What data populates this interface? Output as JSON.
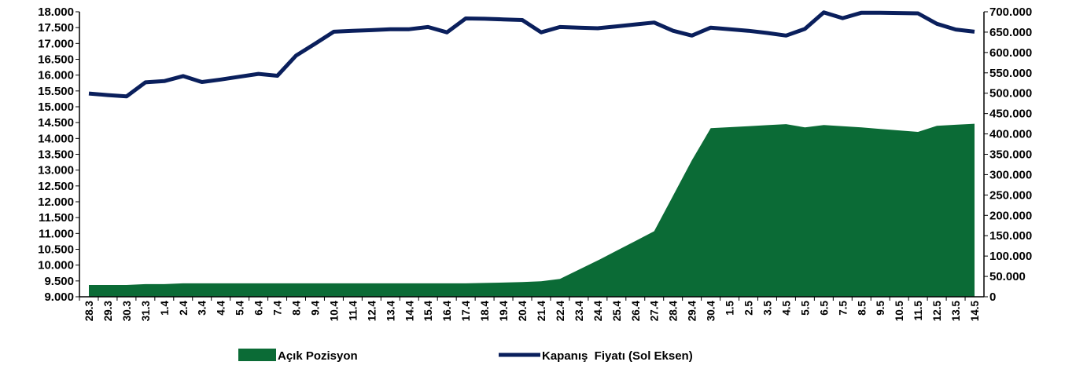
{
  "chart_data": {
    "type": "line",
    "categories": [
      "28.3",
      "29.3",
      "30.3",
      "31.3",
      "1.4",
      "2.4",
      "3.4",
      "4.4",
      "5.4",
      "6.4",
      "7.4",
      "8.4",
      "9.4",
      "10.4",
      "11.4",
      "12.4",
      "13.4",
      "14.4",
      "15.4",
      "16.4",
      "17.4",
      "18.4",
      "19.4",
      "20.4",
      "21.4",
      "22.4",
      "23.4",
      "24.4",
      "25.4",
      "26.4",
      "27.4",
      "28.4",
      "29.4",
      "30.4",
      "1.5",
      "2.5",
      "3.5",
      "4.5",
      "5.5",
      "6.5",
      "7.5",
      "8.5",
      "9.5",
      "10.5",
      "11.5",
      "12.5",
      "13.5",
      "14.5"
    ],
    "y_left": {
      "ylim": [
        9000,
        18000
      ],
      "ticks": [
        "9.000",
        "9.500",
        "10.000",
        "10.500",
        "11.000",
        "11.500",
        "12.000",
        "12.500",
        "13.000",
        "13.500",
        "14.000",
        "14.500",
        "15.000",
        "15.500",
        "16.000",
        "16.500",
        "17.000",
        "17.500",
        "18.000"
      ]
    },
    "y_right": {
      "ylim": [
        0,
        700000
      ],
      "ticks": [
        "0",
        "50.000",
        "100.000",
        "150.000",
        "200.000",
        "250.000",
        "300.000",
        "350.000",
        "400.000",
        "450.000",
        "500.000",
        "550.000",
        "600.000",
        "650.000",
        "700.000"
      ]
    },
    "grid": false,
    "legend_position": "bottom",
    "series": [
      {
        "name": "Açık Pozisyon",
        "type": "area",
        "axis": "right",
        "color": "#0b6b36",
        "values": [
          29000,
          29000,
          29000,
          31000,
          31000,
          33000,
          33000,
          33000,
          33000,
          33000,
          33000,
          33000,
          33000,
          33000,
          33000,
          33000,
          33000,
          33000,
          33000,
          33000,
          33000,
          34000,
          35000,
          36000,
          38000,
          44000,
          null,
          89000,
          null,
          null,
          161000,
          null,
          335000,
          414000,
          null,
          null,
          null,
          424000,
          416000,
          422000,
          null,
          416000,
          null,
          null,
          405000,
          420000,
          null,
          425000
        ]
      },
      {
        "name": "Kapanış  Fiyatı (Sol Eksen)",
        "type": "line",
        "axis": "left",
        "color": "#0a1f5c",
        "values": [
          15420,
          15370,
          15330,
          15770,
          15810,
          15970,
          15780,
          15860,
          15950,
          16040,
          15980,
          16620,
          16990,
          17370,
          17400,
          17420,
          17450,
          17450,
          17520,
          17350,
          17790,
          17780,
          17760,
          17740,
          17350,
          17520,
          17500,
          17480,
          17540,
          17600,
          17660,
          17400,
          17250,
          17500,
          17450,
          17400,
          17330,
          17250,
          17460,
          17980,
          17800,
          17970,
          17970,
          17960,
          17950,
          17620,
          17440,
          17370
        ]
      }
    ]
  }
}
